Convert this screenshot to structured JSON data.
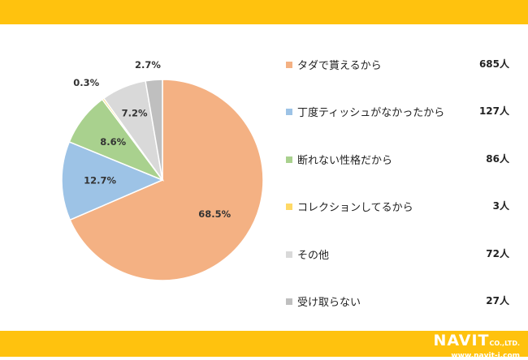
{
  "chart_data": {
    "type": "pie",
    "series": [
      {
        "label": "タダで貰えるから",
        "count": "685人",
        "value": 68.5,
        "pct_label": "68.5%",
        "color": "#F4B183"
      },
      {
        "label": "丁度ティッシュがなかったから",
        "count": "127人",
        "value": 12.7,
        "pct_label": "12.7%",
        "color": "#9DC3E6"
      },
      {
        "label": "断れない性格だから",
        "count": "86人",
        "value": 8.6,
        "pct_label": "8.6%",
        "color": "#A9D18E"
      },
      {
        "label": "コレクションしてるから",
        "count": "3人",
        "value": 0.3,
        "pct_label": "0.3%",
        "color": "#FFD966"
      },
      {
        "label": "その他",
        "count": "72人",
        "value": 7.2,
        "pct_label": "7.2%",
        "color": "#D9D9D9"
      },
      {
        "label": "受け取らない",
        "count": "27人",
        "value": 2.7,
        "pct_label": "2.7%",
        "color": "#BFBFBF"
      }
    ],
    "legend_position": "right",
    "start_angle_deg": 0,
    "direction": "clockwise"
  },
  "brand": {
    "accent_color": "#FFC20E",
    "logo_text": "NAVIT",
    "logo_suffix": "CO.,LTD.",
    "url": "www.navit-j.com"
  }
}
